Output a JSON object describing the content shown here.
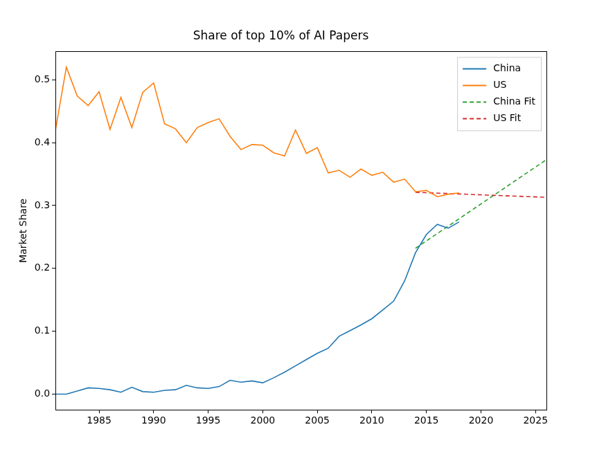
{
  "chart_data": {
    "type": "line",
    "title": "Share of top 10% of AI Papers",
    "y_label": "Market Share",
    "xlim": [
      1981,
      2026
    ],
    "xticks": [
      1985,
      1990,
      1995,
      2000,
      2005,
      2010,
      2015,
      2020,
      2025
    ],
    "ylim": [
      -0.025,
      0.545
    ],
    "yticks": [
      {
        "value": 0,
        "label": "0.0"
      },
      0.1,
      0.2,
      0.3,
      0.4,
      0.5
    ],
    "grid": false,
    "legend": "upper right",
    "series": [
      {
        "name": "China",
        "color": "#1f77b4",
        "line_style": "solid",
        "x": [
          1981,
          1982,
          1983,
          1984,
          1985,
          1986,
          1987,
          1988,
          1989,
          1990,
          1991,
          1992,
          1993,
          1994,
          1995,
          1996,
          1997,
          1998,
          1999,
          2000,
          2001,
          2002,
          2003,
          2004,
          2005,
          2006,
          2007,
          2008,
          2009,
          2010,
          2011,
          2012,
          2013,
          2014,
          2015,
          2016,
          2017,
          2018
        ],
        "values": [
          0.0,
          0.0,
          0.005,
          0.01,
          0.009,
          0.007,
          0.003,
          0.011,
          0.004,
          0.003,
          0.006,
          0.007,
          0.014,
          0.01,
          0.009,
          0.012,
          0.022,
          0.019,
          0.021,
          0.018,
          0.026,
          0.035,
          0.045,
          0.055,
          0.065,
          0.073,
          0.092,
          0.101,
          0.11,
          0.12,
          0.134,
          0.148,
          0.18,
          0.225,
          0.254,
          0.27,
          0.264,
          0.274
        ]
      },
      {
        "name": "US",
        "color": "#ff7f0e",
        "line_style": "solid",
        "x": [
          1981,
          1982,
          1983,
          1984,
          1985,
          1986,
          1987,
          1988,
          1989,
          1990,
          1991,
          1992,
          1993,
          1994,
          1995,
          1996,
          1997,
          1998,
          1999,
          2000,
          2001,
          2002,
          2003,
          2004,
          2005,
          2006,
          2007,
          2008,
          2009,
          2010,
          2011,
          2012,
          2013,
          2014,
          2015,
          2016,
          2017,
          2018
        ],
        "values": [
          0.42,
          0.52,
          0.474,
          0.459,
          0.481,
          0.421,
          0.472,
          0.424,
          0.48,
          0.495,
          0.43,
          0.422,
          0.4,
          0.424,
          0.432,
          0.438,
          0.41,
          0.389,
          0.397,
          0.396,
          0.384,
          0.379,
          0.42,
          0.383,
          0.392,
          0.352,
          0.356,
          0.345,
          0.358,
          0.348,
          0.353,
          0.337,
          0.342,
          0.322,
          0.324,
          0.314,
          0.318,
          0.32
        ]
      },
      {
        "name": "China Fit",
        "color": "#2ca02c",
        "line_style": "dashed",
        "x": [
          2014,
          2026
        ],
        "values": [
          0.232,
          0.373
        ]
      },
      {
        "name": "US Fit",
        "color": "#d62728",
        "line_style": "dashed",
        "x": [
          2014,
          2026
        ],
        "values": [
          0.321,
          0.313
        ]
      }
    ]
  }
}
